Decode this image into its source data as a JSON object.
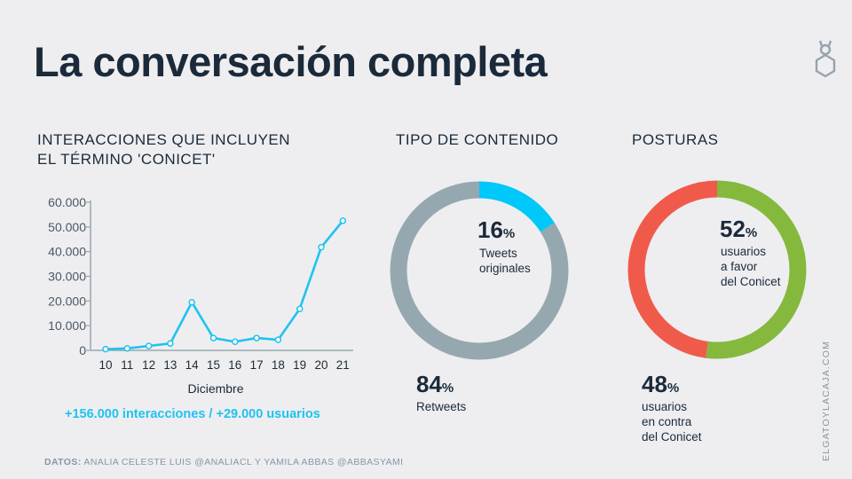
{
  "title": "La conversación completa",
  "logo_icon": "cat-box-icon",
  "sections": {
    "interactions": {
      "title_line1": "INTERACCIONES QUE INCLUYEN",
      "title_line2": "EL TÉRMINO 'CONICET'"
    },
    "content_type": {
      "title": "TIPO DE CONTENIDO"
    },
    "stances": {
      "title": "POSTURAS"
    }
  },
  "note": "+156.000 interacciones / +29.000 usuarios",
  "footer": {
    "label": "DATOS:",
    "text": " ANALIA CELESTE LUIS @ANALIACL Y YAMILA ABBAS @ABBASYAMI"
  },
  "site": "ELGATOYLACAJA.COM",
  "colors": {
    "line": "#1ec3f0",
    "grey": "#95a8b0",
    "cyan": "#00c8f8",
    "red": "#f05a4b",
    "green": "#84b93e"
  },
  "chart_data": [
    {
      "type": "line",
      "xlabel": "Diciembre",
      "x": [
        10,
        11,
        12,
        13,
        14,
        15,
        16,
        17,
        18,
        19,
        20,
        21
      ],
      "x_tick_labels": [
        "10",
        "11",
        "12",
        "13",
        "14",
        "15",
        "16",
        "17",
        "18",
        "19",
        "20",
        "21"
      ],
      "series": [
        {
          "values": [
            500,
            800,
            1800,
            2800,
            19500,
            5000,
            3500,
            5000,
            4300,
            16800,
            41800,
            52500
          ]
        }
      ],
      "ylim": [
        0,
        60000
      ],
      "y_ticks": [
        0,
        10000,
        20000,
        30000,
        40000,
        50000,
        60000
      ],
      "y_tick_labels": [
        "0",
        "10.000",
        "20.000",
        "30.000",
        "40.000",
        "50.000",
        "60.000"
      ],
      "grid": false
    },
    {
      "type": "pie",
      "style": "donut",
      "slices": [
        {
          "value": 16,
          "big": "16",
          "unit": "%",
          "line1": "Tweets",
          "line2": "originales",
          "color": "#00c8f8"
        },
        {
          "value": 84,
          "big": "84",
          "unit": "%",
          "line1": "Retweets",
          "color": "#95a8b0"
        }
      ]
    },
    {
      "type": "pie",
      "style": "donut",
      "slices": [
        {
          "value": 52,
          "big": "52",
          "unit": "%",
          "line1": "usuarios",
          "line2": "a favor",
          "line3": "del Conicet",
          "color": "#84b93e"
        },
        {
          "value": 48,
          "big": "48",
          "unit": "%",
          "line1": "usuarios",
          "line2": "en contra",
          "line3": "del Conicet",
          "color": "#f05a4b"
        }
      ]
    }
  ]
}
